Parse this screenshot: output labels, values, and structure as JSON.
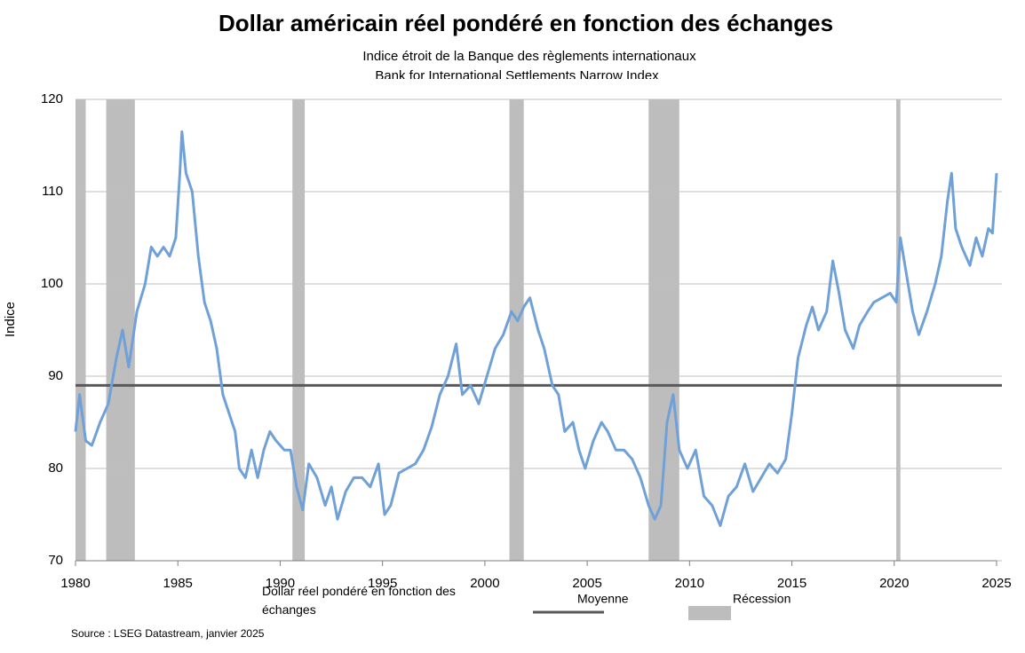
{
  "chart_data": {
    "type": "line",
    "title": "Dollar américain réel pondéré en fonction des échanges",
    "subtitle": "Indice étroit de la Banque des règlements internationaux",
    "subtitle_en": "Bank for International Settlements Narrow Index",
    "ylabel": "Indice",
    "source": "Source : LSEG Datastream, janvier 2025",
    "xlim": [
      1980,
      2025
    ],
    "xticks": [
      1980,
      1985,
      1990,
      1995,
      2000,
      2005,
      2010,
      2015,
      2020,
      2025
    ],
    "ylim": [
      70,
      120
    ],
    "yticks": [
      70,
      80,
      90,
      100,
      110,
      120
    ],
    "grid": true,
    "x": [
      1980.0,
      1980.2,
      1980.5,
      1980.8,
      1981.2,
      1981.6,
      1982.0,
      1982.3,
      1982.6,
      1983.0,
      1983.4,
      1983.7,
      1984.0,
      1984.3,
      1984.6,
      1984.9,
      1985.1,
      1985.2,
      1985.4,
      1985.7,
      1986.0,
      1986.3,
      1986.6,
      1986.9,
      1987.2,
      1987.5,
      1987.8,
      1988.0,
      1988.3,
      1988.6,
      1988.9,
      1989.2,
      1989.5,
      1989.8,
      1990.2,
      1990.5,
      1990.8,
      1991.1,
      1991.4,
      1991.8,
      1992.2,
      1992.5,
      1992.8,
      1993.2,
      1993.6,
      1994.0,
      1994.4,
      1994.8,
      1995.1,
      1995.4,
      1995.8,
      1996.2,
      1996.6,
      1997.0,
      1997.4,
      1997.8,
      1998.2,
      1998.6,
      1998.9,
      1999.3,
      1999.7,
      2000.1,
      2000.5,
      2000.9,
      2001.3,
      2001.6,
      2001.9,
      2002.2,
      2002.6,
      2002.9,
      2003.3,
      2003.6,
      2003.9,
      2004.3,
      2004.6,
      2004.9,
      2005.3,
      2005.7,
      2006.0,
      2006.4,
      2006.8,
      2007.2,
      2007.6,
      2008.0,
      2008.3,
      2008.6,
      2008.9,
      2009.2,
      2009.5,
      2009.9,
      2010.3,
      2010.7,
      2011.1,
      2011.5,
      2011.9,
      2012.3,
      2012.7,
      2013.1,
      2013.5,
      2013.9,
      2014.3,
      2014.7,
      2015.0,
      2015.3,
      2015.7,
      2016.0,
      2016.3,
      2016.7,
      2017.0,
      2017.3,
      2017.6,
      2018.0,
      2018.3,
      2018.7,
      2019.0,
      2019.4,
      2019.8,
      2020.1,
      2020.3,
      2020.6,
      2020.9,
      2021.2,
      2021.6,
      2022.0,
      2022.3,
      2022.6,
      2022.8,
      2023.0,
      2023.3,
      2023.7,
      2024.0,
      2024.3,
      2024.6,
      2024.8,
      2025.0
    ],
    "series": [
      {
        "name": "Dollar réel pondéré en fonction des échanges",
        "color": "#6fa1d8",
        "values": [
          84,
          88,
          83,
          82.5,
          85,
          87,
          92,
          95,
          91,
          97,
          100,
          104,
          103,
          104,
          103,
          105,
          112,
          116.5,
          112,
          110,
          103,
          98,
          96,
          93,
          88,
          86,
          84,
          80,
          79,
          82,
          79,
          82,
          84,
          83,
          82,
          82,
          78,
          75.5,
          80.5,
          79,
          76,
          78,
          74.5,
          77.5,
          79,
          79,
          78,
          80.5,
          75,
          76,
          79.5,
          80,
          80.5,
          82,
          84.5,
          88,
          90,
          93.5,
          88,
          89,
          87,
          90,
          93,
          94.5,
          97,
          96,
          97.5,
          98.5,
          95,
          93,
          89,
          88,
          84,
          85,
          82,
          80,
          83,
          85,
          84,
          82,
          82,
          81,
          79,
          76,
          74.5,
          76,
          85,
          88,
          82,
          80,
          82,
          77,
          76,
          73.8,
          77,
          78,
          80.5,
          77.5,
          79,
          80.5,
          79.5,
          81,
          86,
          92,
          95.5,
          97.5,
          95,
          97,
          102.5,
          99,
          95,
          93,
          95.5,
          97,
          98,
          98.5,
          99,
          98,
          105,
          101,
          97,
          94.5,
          97,
          100,
          103,
          109,
          112,
          106,
          104,
          102,
          105,
          103,
          106,
          105.5,
          112
        ]
      }
    ],
    "hline": {
      "name": "Moyenne",
      "value": 89,
      "color": "#595959"
    },
    "bands": {
      "name": "Récession",
      "color": "#bdbdbd",
      "ranges": [
        [
          1980.0,
          1980.5
        ],
        [
          1981.5,
          1982.9
        ],
        [
          1990.6,
          1991.2
        ],
        [
          2001.2,
          2001.9
        ],
        [
          2008.0,
          2009.5
        ],
        [
          2020.1,
          2020.3
        ]
      ]
    }
  }
}
